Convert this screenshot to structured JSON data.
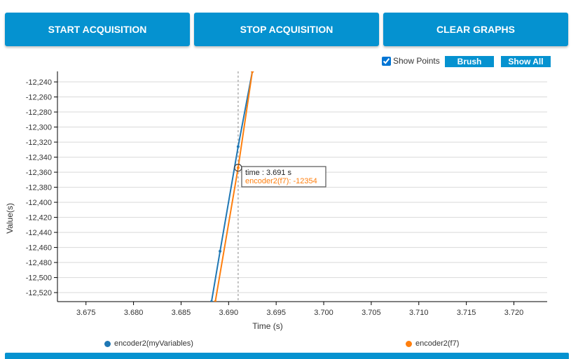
{
  "toolbar": {
    "start_label": "START ACQUISITION",
    "stop_label": "STOP ACQUISITION",
    "clear_label": "CLEAR GRAPHS"
  },
  "controls": {
    "show_points_label": "Show Points",
    "show_points_checked": true,
    "brush_label": "Brush",
    "show_all_label": "Show All"
  },
  "tooltip": {
    "time_text": "time : 3.691 s",
    "value_text": "encoder2(f7): -12354"
  },
  "colors": {
    "accent": "#0592d0",
    "series_0": "#1f77b4",
    "series_1": "#ff7f0e"
  },
  "chart_data": {
    "type": "line",
    "xlabel": "Time (s)",
    "ylabel": "Value(s)",
    "xlim": [
      3.672,
      3.7235
    ],
    "ylim": [
      -12532,
      -12226
    ],
    "x_ticks": [
      3.675,
      3.68,
      3.685,
      3.69,
      3.695,
      3.7,
      3.705,
      3.71,
      3.715,
      3.72
    ],
    "x_tick_labels": [
      "3.675",
      "3.680",
      "3.685",
      "3.690",
      "3.695",
      "3.700",
      "3.705",
      "3.710",
      "3.715",
      "3.720"
    ],
    "y_ticks": [
      -12240,
      -12260,
      -12280,
      -12300,
      -12320,
      -12340,
      -12360,
      -12380,
      -12400,
      -12420,
      -12440,
      -12460,
      -12480,
      -12500,
      -12520
    ],
    "y_tick_labels": [
      "-12,240",
      "-12,260",
      "-12,280",
      "-12,300",
      "-12,320",
      "-12,340",
      "-12,360",
      "-12,380",
      "-12,400",
      "-12,420",
      "-12,440",
      "-12,460",
      "-12,480",
      "-12,500",
      "-12,520"
    ],
    "grid": true,
    "legend_position": "bottom",
    "hover_x": 3.691,
    "series": [
      {
        "name": "encoder2(myVariables)",
        "points": [
          [
            3.6882,
            -12532
          ],
          [
            3.6891,
            -12465
          ],
          [
            3.691,
            -12326
          ],
          [
            3.6925,
            -12226
          ]
        ]
      },
      {
        "name": "encoder2(f7)",
        "points": [
          [
            3.6886,
            -12532
          ],
          [
            3.691,
            -12354
          ],
          [
            3.6925,
            -12226
          ]
        ]
      }
    ]
  }
}
